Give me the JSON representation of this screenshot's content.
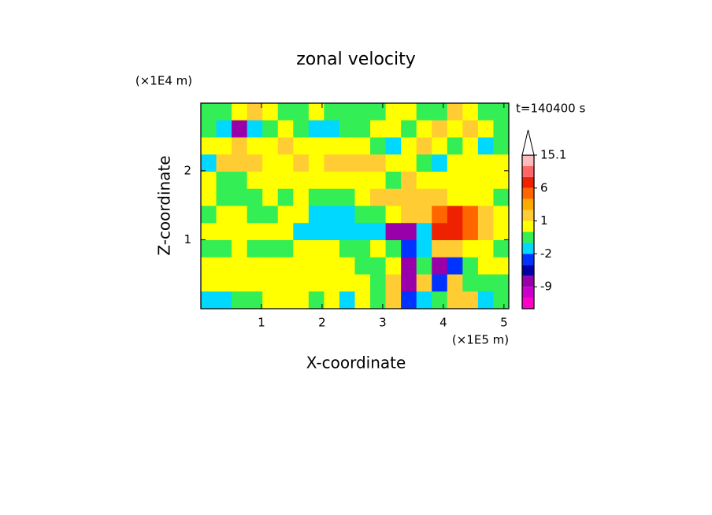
{
  "chart_data": {
    "type": "contourf",
    "title": "zonal velocity",
    "time_label": "t=140400 s",
    "x_label": "X-coordinate",
    "y_label": "Z-coordinate",
    "x_scale_label": "(×1E5 m)",
    "y_scale_label": "(×1E4 m)",
    "xlim": [
      0,
      5.08
    ],
    "ylim": [
      0,
      2.98
    ],
    "xticks": [
      1,
      2,
      3,
      4,
      5
    ],
    "yticks": [
      1,
      2
    ],
    "z": [
      [
        -0.5,
        -0.5,
        0.5,
        1.5,
        0.5,
        -0.5,
        -0.5,
        0.5,
        -0.5,
        -0.5,
        -0.5,
        -0.5,
        0.5,
        0.5,
        -0.5,
        -0.5,
        1.5,
        0.5,
        -0.5,
        -0.5
      ],
      [
        -0.5,
        -1.5,
        -6,
        -1.5,
        -0.5,
        0.5,
        -0.5,
        -1.5,
        -1.5,
        -0.5,
        -0.5,
        0.5,
        0.5,
        -0.5,
        0.5,
        1.5,
        0.5,
        1.5,
        0.5,
        -0.5
      ],
      [
        0.5,
        0.5,
        1.5,
        0.5,
        0.5,
        1.5,
        0.5,
        0.5,
        0.5,
        0.5,
        0.5,
        -0.5,
        -1.5,
        0.5,
        1.5,
        0.5,
        -0.5,
        0.5,
        -1.5,
        -0.5
      ],
      [
        -1.5,
        1.5,
        1.5,
        1.5,
        0.5,
        0.5,
        1.5,
        0.5,
        1.5,
        1.5,
        1.5,
        1.5,
        0.5,
        0.5,
        -0.5,
        -1.5,
        0.5,
        0.5,
        0.5,
        0.5
      ],
      [
        0.5,
        -0.5,
        -0.5,
        0.5,
        0.5,
        0.5,
        0.5,
        0.5,
        0.5,
        0.5,
        0.5,
        0.5,
        -0.5,
        1.5,
        0.5,
        0.5,
        0.5,
        0.5,
        0.5,
        0.5
      ],
      [
        0.5,
        -0.5,
        -0.5,
        -0.5,
        0.5,
        -0.5,
        0.5,
        -0.5,
        -0.5,
        -0.5,
        0.5,
        1.5,
        1.5,
        1.5,
        1.5,
        1.5,
        0.5,
        0.5,
        0.5,
        -0.5
      ],
      [
        -0.5,
        0.5,
        0.5,
        -0.5,
        -0.5,
        0.5,
        0.5,
        -1.5,
        -1.5,
        -1.5,
        -0.5,
        -0.5,
        0.5,
        1.5,
        1.5,
        4,
        7,
        4,
        1.5,
        0.5
      ],
      [
        0.5,
        0.5,
        0.5,
        0.5,
        0.5,
        0.5,
        -1.5,
        -1.5,
        -1.5,
        -1.5,
        -1.5,
        -1.5,
        -6,
        -6,
        -1.5,
        7,
        7,
        4,
        1.5,
        0.5
      ],
      [
        -0.5,
        -0.5,
        0.5,
        -0.5,
        -0.5,
        -0.5,
        0.5,
        0.5,
        0.5,
        -0.5,
        -0.5,
        0.5,
        -0.5,
        -2.5,
        -1.5,
        1.5,
        1.5,
        0.5,
        0.5,
        -0.5
      ],
      [
        0.5,
        0.5,
        0.5,
        0.5,
        0.5,
        0.5,
        0.5,
        0.5,
        0.5,
        0.5,
        -0.5,
        -0.5,
        0.5,
        -6,
        -0.5,
        -6,
        -2.5,
        -0.5,
        0.5,
        0.5
      ],
      [
        0.5,
        0.5,
        0.5,
        0.5,
        0.5,
        0.5,
        0.5,
        0.5,
        0.5,
        0.5,
        0.5,
        -0.5,
        1.5,
        -6,
        1.5,
        -2.5,
        1.5,
        -0.5,
        -0.5,
        -0.5
      ],
      [
        -1.5,
        -1.5,
        -0.5,
        -0.5,
        0.5,
        0.5,
        0.5,
        -0.5,
        0.5,
        -1.5,
        0.5,
        -0.5,
        1.5,
        -2.5,
        -1.5,
        -0.5,
        1.5,
        1.5,
        -1.5,
        -0.5
      ]
    ],
    "colorbar": {
      "levels": [
        -15,
        -12,
        -9,
        -5,
        -3,
        -2,
        -1,
        0,
        1,
        2,
        3,
        6,
        9,
        12,
        15.1
      ],
      "colors": [
        "#ff00c8",
        "#cc00cc",
        "#9900aa",
        "#0000a8",
        "#0033ff",
        "#00d8ff",
        "#33ee55",
        "#ffff00",
        "#ffcc33",
        "#ffaa00",
        "#ff6600",
        "#ee2200",
        "#ff6666",
        "#ffbbbb"
      ],
      "ticks": [
        -9,
        -2,
        1,
        6,
        15.1
      ],
      "extend": "max"
    }
  }
}
